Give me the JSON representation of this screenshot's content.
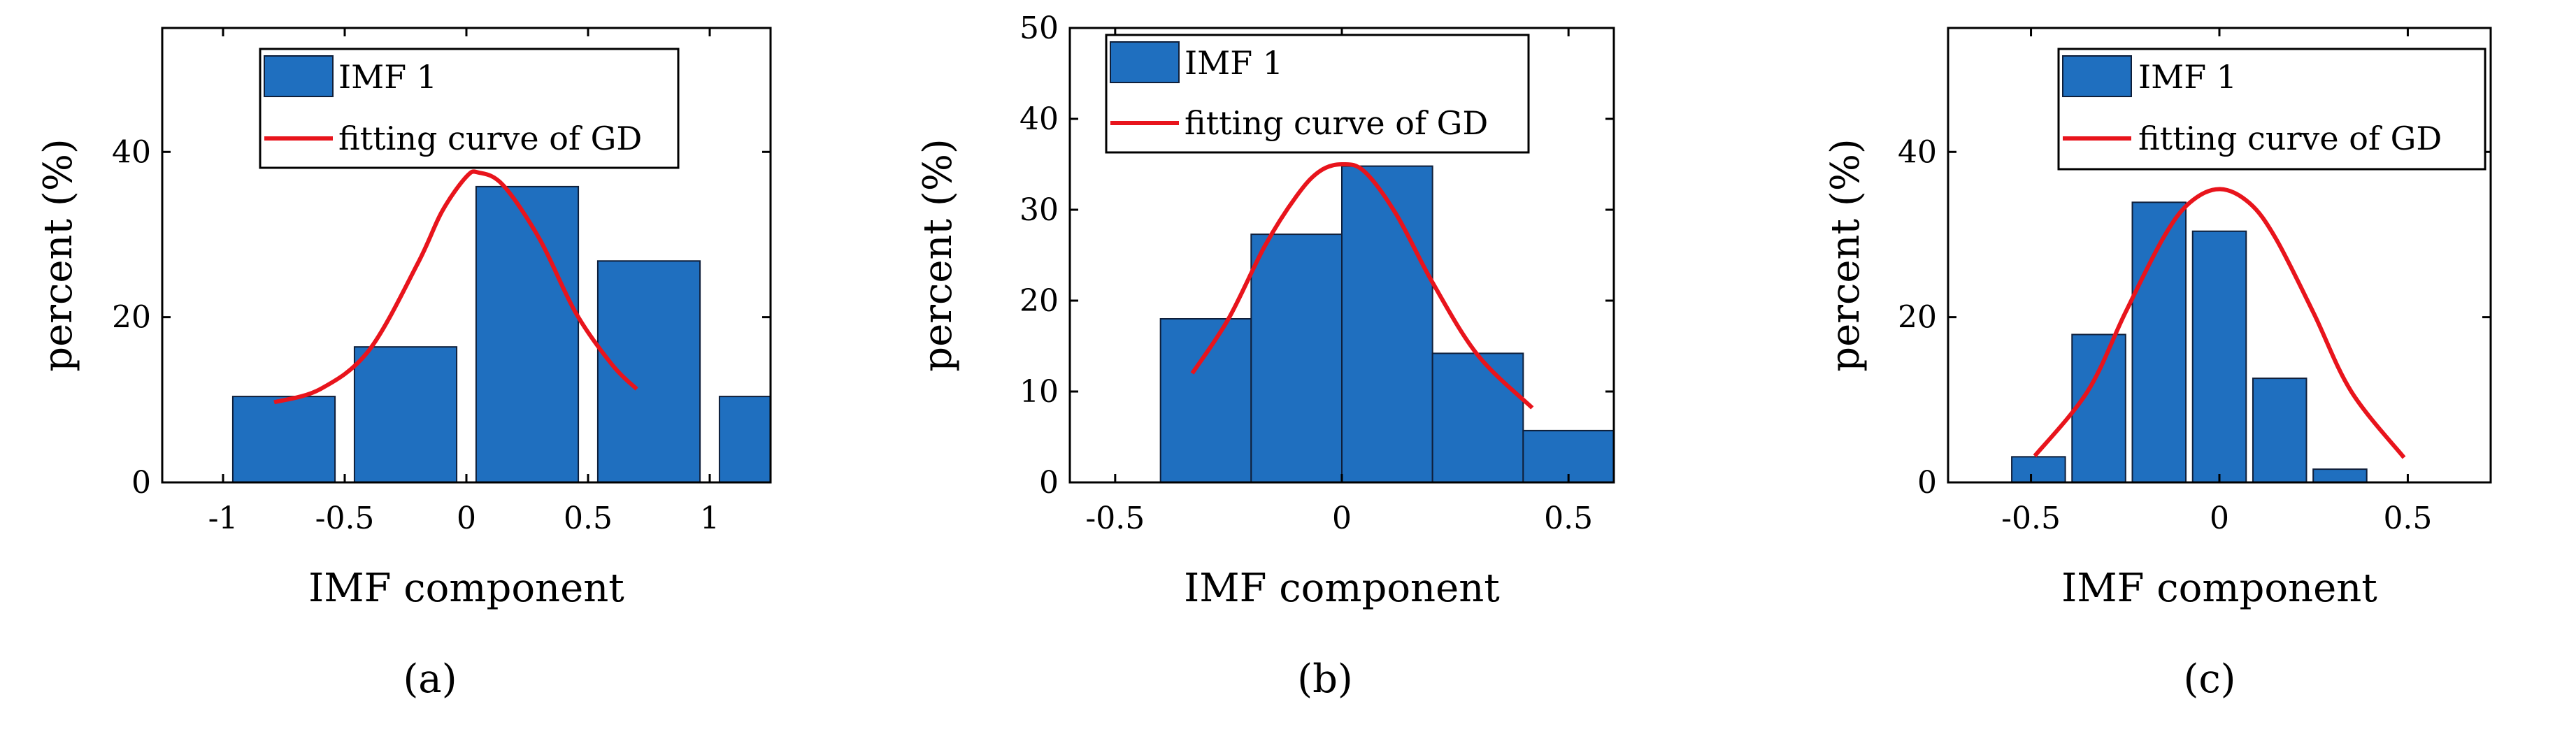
{
  "figure": {
    "captions": [
      "(a)",
      "(b)",
      "(c)"
    ]
  },
  "colors": {
    "bar_fill": "#1f6fbf",
    "bar_edge": "#0f1f3a",
    "curve": "#e8141c",
    "axis": "#000000"
  },
  "chart_data": [
    {
      "id": "a",
      "type": "bar",
      "caption": "(a)",
      "title": "",
      "xlabel": "IMF component",
      "ylabel": "percent (%)",
      "xlim": [
        -1.25,
        1.25
      ],
      "ylim": [
        0,
        55
      ],
      "xticks": [
        -1,
        -0.5,
        0,
        0.5,
        1
      ],
      "xtick_labels": [
        "-1",
        "-0.5",
        "0",
        "0.5",
        "1"
      ],
      "yticks": [
        0,
        20,
        40
      ],
      "ytick_labels": [
        "0",
        "20",
        "40"
      ],
      "bar_width": 0.42,
      "bars": {
        "centers": [
          -0.75,
          -0.25,
          0.25,
          0.75,
          1.25
        ],
        "values": [
          10.4,
          16.4,
          35.8,
          26.8,
          10.4
        ]
      },
      "curve": {
        "x": [
          -0.79,
          -0.6,
          -0.4,
          -0.2,
          -0.1,
          0,
          0.05,
          0.15,
          0.3,
          0.45,
          0.6,
          0.7
        ],
        "y": [
          9.7,
          11.3,
          16.0,
          26.5,
          32.8,
          37.0,
          37.5,
          36.0,
          29.5,
          20.5,
          14.2,
          11.3
        ]
      },
      "legend": {
        "location": "top",
        "entries": [
          "IMF 1",
          "fitting curve of GD"
        ]
      },
      "grid": false
    },
    {
      "id": "b",
      "type": "bar",
      "caption": "(b)",
      "title": "",
      "xlabel": "IMF component",
      "ylabel": "percent (%)",
      "xlim": [
        -0.6,
        0.6
      ],
      "ylim": [
        0,
        50
      ],
      "xticks": [
        -0.5,
        0,
        0.5
      ],
      "xtick_labels": [
        "-0.5",
        "0",
        "0.5"
      ],
      "yticks": [
        0,
        10,
        20,
        30,
        40,
        50
      ],
      "ytick_labels": [
        "0",
        "10",
        "20",
        "30",
        "40",
        "50"
      ],
      "bar_width": 0.2,
      "bars": {
        "centers": [
          -0.3,
          -0.1,
          0.1,
          0.3,
          0.5
        ],
        "values": [
          18.0,
          27.3,
          34.8,
          14.2,
          5.7
        ]
      },
      "curve": {
        "x": [
          -0.33,
          -0.25,
          -0.17,
          -0.1,
          -0.05,
          0,
          0.05,
          0.12,
          0.2,
          0.3,
          0.42
        ],
        "y": [
          12.0,
          18.0,
          26.0,
          31.5,
          34.2,
          35.0,
          34.2,
          29.5,
          22.0,
          14.0,
          8.2
        ]
      },
      "legend": {
        "location": "top",
        "entries": [
          "IMF 1",
          "fitting curve of GD"
        ]
      },
      "grid": false
    },
    {
      "id": "c",
      "type": "bar",
      "caption": "(c)",
      "title": "",
      "xlabel": "IMF component",
      "ylabel": "percent (%)",
      "xlim": [
        -0.72,
        0.72
      ],
      "ylim": [
        0,
        55
      ],
      "xticks": [
        -0.5,
        0,
        0.5
      ],
      "xtick_labels": [
        "-0.5",
        "0",
        "0.5"
      ],
      "yticks": [
        0,
        20,
        40
      ],
      "ytick_labels": [
        "0",
        "20",
        "40"
      ],
      "bar_width": 0.142,
      "bars": {
        "centers": [
          -0.48,
          -0.32,
          -0.16,
          0,
          0.16,
          0.32,
          0.48
        ],
        "values": [
          3.1,
          17.9,
          33.9,
          30.4,
          12.6,
          1.6,
          0
        ]
      },
      "curve": {
        "x": [
          -0.49,
          -0.35,
          -0.25,
          -0.15,
          -0.08,
          0,
          0.08,
          0.15,
          0.25,
          0.35,
          0.49
        ],
        "y": [
          3.2,
          11.0,
          20.5,
          29.5,
          33.8,
          35.5,
          33.8,
          29.5,
          20.5,
          11.0,
          3.0
        ]
      },
      "legend": {
        "location": "top",
        "entries": [
          "IMF 1",
          "fitting curve of GD"
        ]
      },
      "grid": false
    }
  ]
}
